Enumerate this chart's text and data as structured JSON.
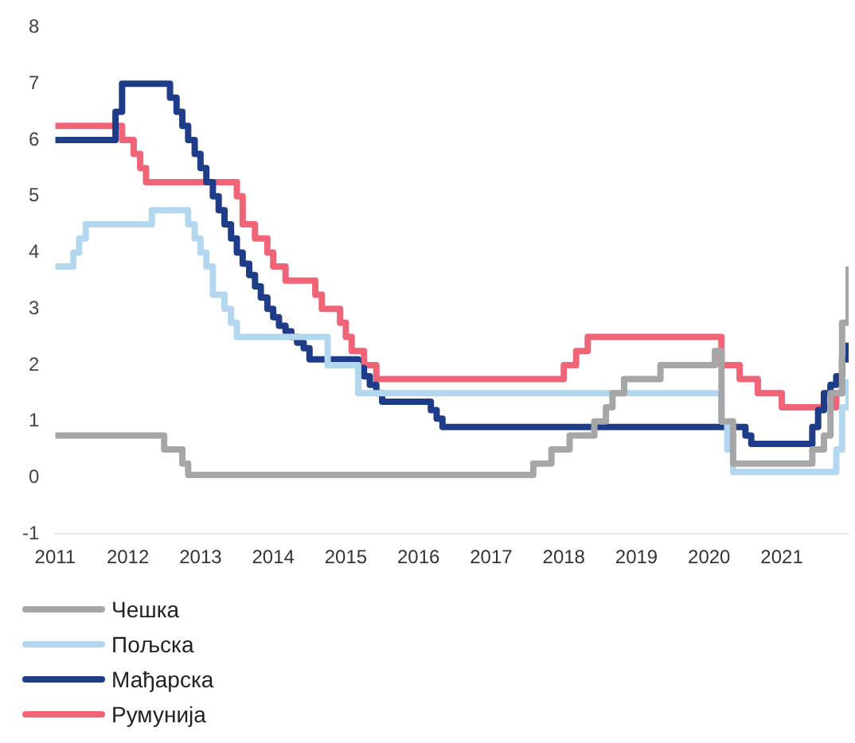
{
  "chart_data": {
    "type": "step",
    "xlim": [
      2011,
      2021.92
    ],
    "xticks": [
      2011,
      2012,
      2013,
      2014,
      2015,
      2016,
      2017,
      2018,
      2019,
      2020,
      2021
    ],
    "ylim": [
      -1,
      8
    ],
    "yticks": [
      -1,
      0,
      1,
      2,
      3,
      4,
      5,
      6,
      7,
      8
    ],
    "grid": false,
    "legend": "bottom",
    "marker": "none",
    "series": [
      {
        "name": "Чешка",
        "color": "#a6a6a6",
        "x": [
          2011,
          2012.5,
          2012.75,
          2012.83,
          2017.58,
          2017.83,
          2018.08,
          2018.42,
          2018.58,
          2018.67,
          2018.83,
          2019.33,
          2020.08,
          2020.17,
          2020.33,
          2021.42,
          2021.58,
          2021.67,
          2021.83,
          2021.92
        ],
        "values": [
          0.75,
          0.5,
          0.25,
          0.05,
          0.25,
          0.5,
          0.75,
          1,
          1.25,
          1.5,
          1.75,
          2,
          2.25,
          1,
          0.25,
          0.5,
          0.75,
          1.5,
          2.75,
          3.75
        ]
      },
      {
        "name": "Пољска",
        "color": "#b4d7f0",
        "x": [
          2011,
          2011.25,
          2011.33,
          2011.42,
          2012.33,
          2012.83,
          2012.92,
          2013,
          2013.08,
          2013.17,
          2013.33,
          2013.42,
          2013.5,
          2014.75,
          2015.17,
          2020.17,
          2020.25,
          2020.33,
          2021.75,
          2021.83,
          2021.92
        ],
        "values": [
          3.75,
          4,
          4.25,
          4.5,
          4.75,
          4.5,
          4.25,
          4,
          3.75,
          3.25,
          3,
          2.75,
          2.5,
          2,
          1.5,
          1,
          0.5,
          0.1,
          0.5,
          1.25,
          1.75
        ]
      },
      {
        "name": "Мађарска",
        "color": "#1f3c88",
        "x": [
          2011,
          2011.83,
          2011.92,
          2012.58,
          2012.67,
          2012.75,
          2012.83,
          2012.92,
          2013,
          2013.08,
          2013.17,
          2013.25,
          2013.33,
          2013.42,
          2013.5,
          2013.58,
          2013.67,
          2013.75,
          2013.83,
          2013.92,
          2014,
          2014.08,
          2014.17,
          2014.25,
          2014.33,
          2014.42,
          2014.5,
          2015.17,
          2015.25,
          2015.33,
          2015.42,
          2015.5,
          2016.17,
          2016.25,
          2016.33,
          2020.5,
          2020.58,
          2021.42,
          2021.5,
          2021.58,
          2021.67,
          2021.75,
          2021.83,
          2021.92
        ],
        "values": [
          6,
          6.5,
          7,
          6.75,
          6.5,
          6.25,
          6,
          5.75,
          5.5,
          5.25,
          5,
          4.75,
          4.5,
          4.25,
          4,
          3.8,
          3.6,
          3.4,
          3.2,
          3,
          2.85,
          2.7,
          2.6,
          2.5,
          2.4,
          2.3,
          2.1,
          1.95,
          1.8,
          1.65,
          1.5,
          1.35,
          1.2,
          1.05,
          0.9,
          0.75,
          0.6,
          0.9,
          1.2,
          1.5,
          1.65,
          1.8,
          2.1,
          2.4
        ]
      },
      {
        "name": "Румунија",
        "color": "#f06478",
        "x": [
          2011,
          2011.92,
          2012.08,
          2012.17,
          2012.25,
          2013.5,
          2013.58,
          2013.75,
          2013.92,
          2014,
          2014.17,
          2014.58,
          2014.67,
          2014.92,
          2015,
          2015.08,
          2015.25,
          2015.42,
          2018,
          2018.17,
          2018.33,
          2020.17,
          2020.42,
          2020.67,
          2021,
          2021.75,
          2021.83
        ],
        "values": [
          6.25,
          6,
          5.75,
          5.5,
          5.25,
          5,
          4.5,
          4.25,
          4,
          3.75,
          3.5,
          3.25,
          3,
          2.75,
          2.5,
          2.25,
          2,
          1.75,
          2,
          2.25,
          2.5,
          2,
          1.75,
          1.5,
          1.25,
          1.5,
          1.75
        ]
      }
    ]
  }
}
